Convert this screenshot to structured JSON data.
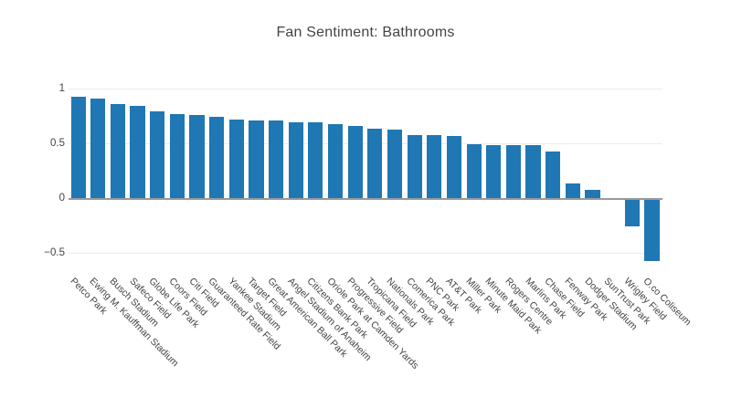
{
  "title": "Fan Sentiment: Bathrooms",
  "chart_data": {
    "type": "bar",
    "title": "Fan Sentiment: Bathrooms",
    "xlabel": "",
    "ylabel": "",
    "categories": [
      "Petco Park",
      "Ewing M. Kauffman Stadium",
      "Busch Stadium",
      "Safeco Field",
      "Globe Life Park",
      "Coors Field",
      "Citi Field",
      "Guaranteed Rate Field",
      "Yankee Stadium",
      "Target Field",
      "Great American Ball Park",
      "Angel Stadium of Anaheim",
      "Citizens Bank Park",
      "Oriole Park at Camden Yards",
      "Progressive Field",
      "Tropicana Field",
      "Nationals Park",
      "Comerica Park",
      "PNC Park",
      "AT&T Park",
      "Miller Park",
      "Minute Maid Park",
      "Rogers Centre",
      "Marlins Park",
      "Chase Field",
      "Fenway Park",
      "Dodger Stadium",
      "SunTrust Park",
      "Wrigley Field",
      "O.co Coliseum"
    ],
    "values": [
      0.93,
      0.91,
      0.86,
      0.85,
      0.8,
      0.77,
      0.76,
      0.75,
      0.72,
      0.71,
      0.71,
      0.7,
      0.7,
      0.68,
      0.66,
      0.64,
      0.63,
      0.58,
      0.58,
      0.57,
      0.5,
      0.49,
      0.49,
      0.49,
      0.43,
      0.14,
      0.08,
      0.0,
      -0.25,
      -0.57
    ],
    "yticks": [
      1,
      0.5,
      0,
      -0.5
    ],
    "ytick_labels": [
      "1",
      "0.5",
      "0",
      "−0.5"
    ],
    "ylim": [
      -0.65,
      1.1
    ],
    "grid": true,
    "legend": false,
    "sorted": "descending",
    "colors": {
      "bar": "#1f77b4",
      "gridline": "#ececec",
      "zeroline": "#999999",
      "text": "#444444",
      "background": "#ffffff"
    }
  }
}
